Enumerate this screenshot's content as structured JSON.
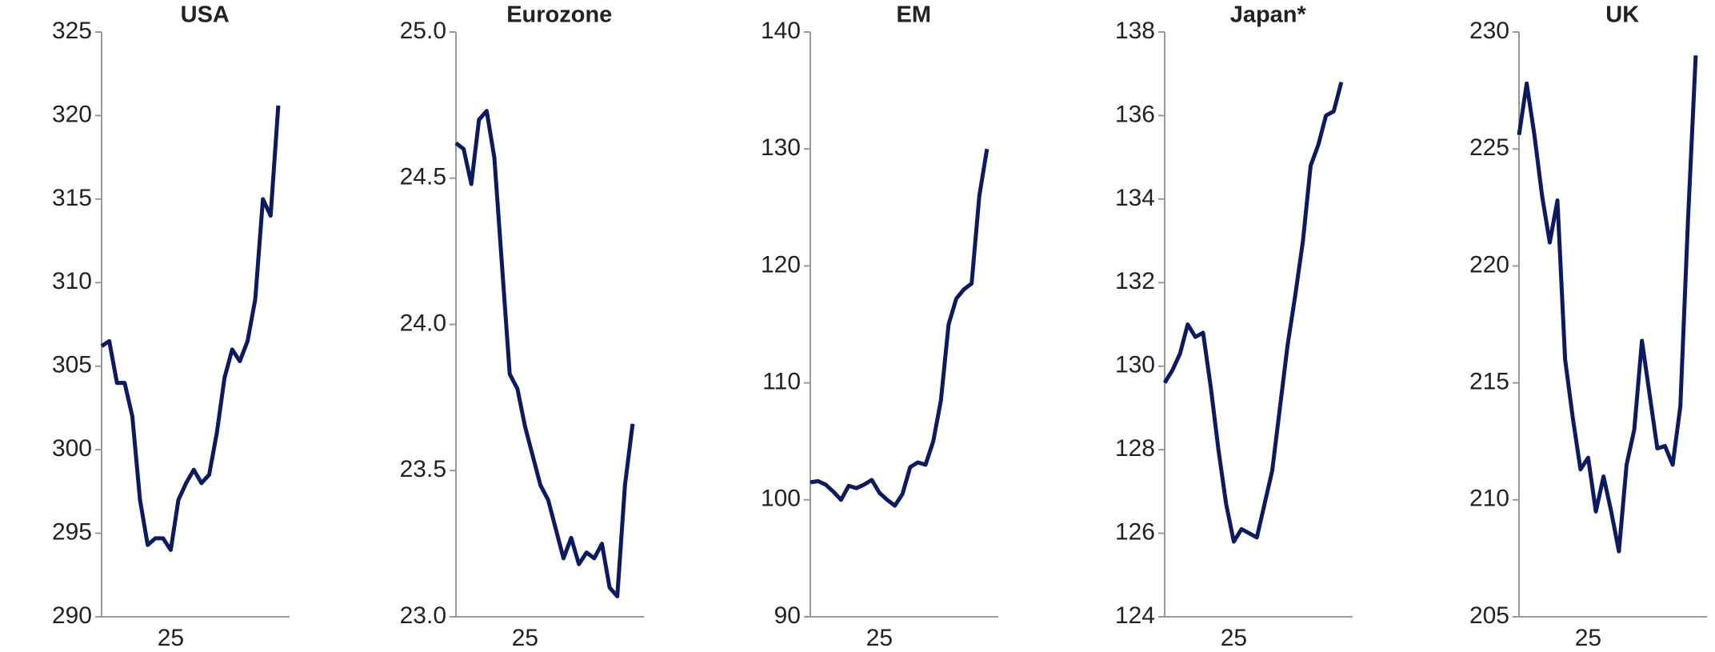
{
  "chart_data": [
    {
      "type": "line",
      "title": "USA",
      "color": "#0d1b5e",
      "categories": [
        null,
        null,
        null,
        null,
        null,
        null,
        null,
        null,
        null,
        "25",
        null,
        null,
        null,
        null,
        null,
        null,
        null,
        null,
        null,
        null,
        null,
        null,
        null,
        null
      ],
      "values": [
        306.2,
        306.5,
        304,
        304,
        302,
        297,
        294.3,
        294.7,
        294.7,
        294,
        297,
        298,
        298.8,
        298,
        298.5,
        301,
        304.3,
        306,
        305.3,
        306.5,
        309,
        315,
        314,
        320.6
      ],
      "ylim": [
        290,
        325
      ],
      "yticks": [
        290,
        295,
        300,
        305,
        310,
        315,
        320,
        325
      ]
    },
    {
      "type": "line",
      "title": "Eurozone",
      "color": "#0d1b5e",
      "categories": [
        null,
        null,
        null,
        null,
        null,
        null,
        null,
        null,
        null,
        "25",
        null,
        null,
        null,
        null,
        null,
        null,
        null,
        null,
        null,
        null,
        null,
        null,
        null,
        null
      ],
      "values": [
        24.62,
        24.6,
        24.48,
        24.7,
        24.73,
        24.57,
        24.2,
        23.83,
        23.78,
        23.65,
        23.55,
        23.45,
        23.4,
        23.3,
        23.2,
        23.27,
        23.18,
        23.22,
        23.2,
        23.25,
        23.1,
        23.07,
        23.45,
        23.66
      ],
      "ylim": [
        23.0,
        25.0
      ],
      "yticks": [
        {
          "value": 23.0,
          "label": "23.0"
        },
        23.5,
        {
          "value": 24.0,
          "label": "24.0"
        },
        24.5,
        {
          "value": 25.0,
          "label": "25.0"
        }
      ]
    },
    {
      "type": "line",
      "title": "EM",
      "color": "#0d1b5e",
      "categories": [
        null,
        null,
        null,
        null,
        null,
        null,
        null,
        null,
        null,
        "25",
        null,
        null,
        null,
        null,
        null,
        null,
        null,
        null,
        null,
        null,
        null,
        null,
        null,
        null
      ],
      "values": [
        101.5,
        101.6,
        101.3,
        100.7,
        100,
        101.2,
        101,
        101.3,
        101.7,
        100.6,
        100,
        99.5,
        100.5,
        102.8,
        103.2,
        103,
        105,
        108.5,
        115,
        117.2,
        118,
        118.5,
        126,
        130
      ],
      "ylim": [
        90,
        140
      ],
      "yticks": [
        90,
        100,
        110,
        120,
        130,
        140
      ]
    },
    {
      "type": "line",
      "title": "Japan*",
      "color": "#0d1b5e",
      "categories": [
        null,
        null,
        null,
        null,
        null,
        null,
        null,
        null,
        null,
        "25",
        null,
        null,
        null,
        null,
        null,
        null,
        null,
        null,
        null,
        null,
        null,
        null,
        null,
        null
      ],
      "values": [
        129.6,
        129.9,
        130.3,
        131,
        130.7,
        130.8,
        129.5,
        128,
        126.7,
        125.8,
        126.1,
        126,
        125.9,
        126.7,
        127.5,
        129,
        130.5,
        131.7,
        133,
        134.8,
        135.3,
        136,
        136.1,
        136.8
      ],
      "ylim": [
        124,
        138
      ],
      "yticks": [
        124,
        126,
        128,
        130,
        132,
        134,
        136,
        138
      ]
    },
    {
      "type": "line",
      "title": "UK",
      "color": "#0d1b5e",
      "categories": [
        null,
        null,
        null,
        null,
        null,
        null,
        null,
        null,
        null,
        "25",
        null,
        null,
        null,
        null,
        null,
        null,
        null,
        null,
        null,
        null,
        null,
        null,
        null,
        null
      ],
      "values": [
        225.6,
        227.8,
        225.6,
        223,
        221,
        222.8,
        216,
        213.5,
        211.3,
        211.8,
        209.5,
        211,
        209.5,
        207.8,
        211.5,
        213,
        216.8,
        214.5,
        212.2,
        212.3,
        211.5,
        214,
        222,
        229
      ],
      "ylim": [
        205,
        230
      ],
      "yticks": [
        205,
        210,
        215,
        220,
        225,
        230
      ]
    }
  ]
}
